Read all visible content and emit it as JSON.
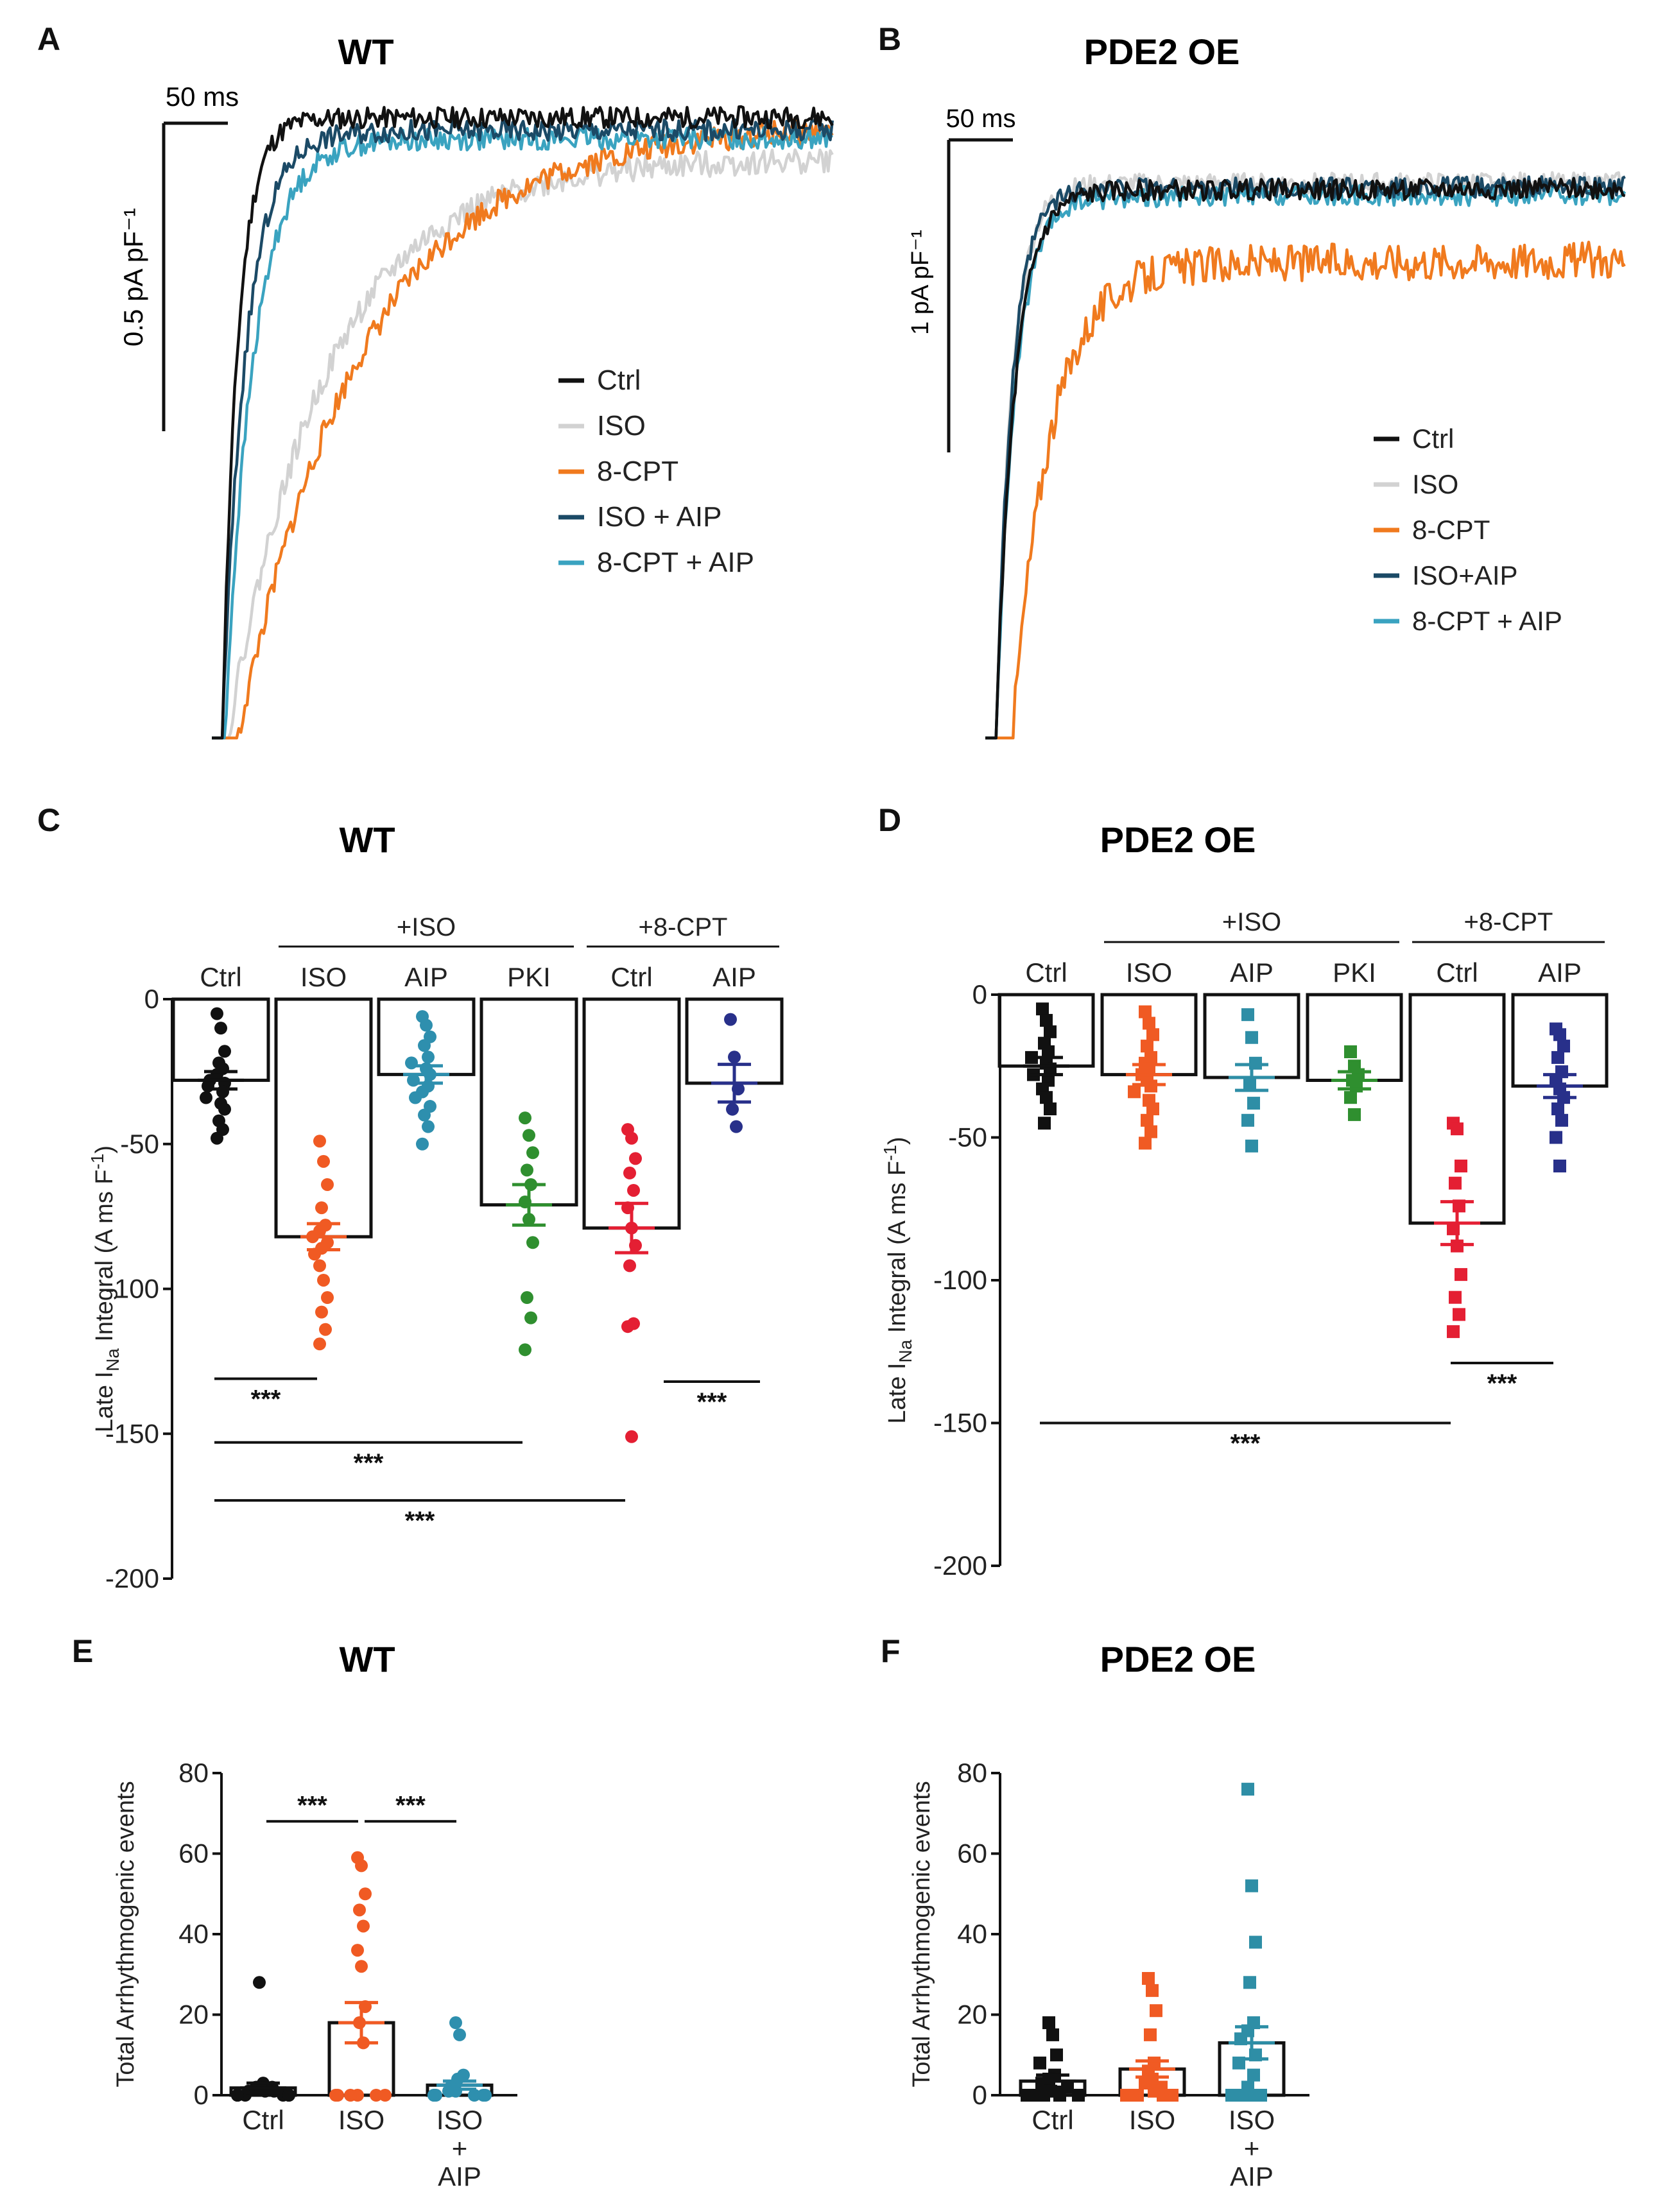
{
  "colors": {
    "black": "#111111",
    "grey": "#d2d2d2",
    "orange": "#f07a1e",
    "orange_red": "#f05a23",
    "dark_teal": "#1b4a66",
    "teal": "#3aa3c0",
    "teal_dots": "#2e8fae",
    "green": "#2f8f2f",
    "red": "#e41f33",
    "navy": "#28308a",
    "tealsq": "#2e8ea6"
  },
  "chart_data": [
    {
      "panel": "A",
      "type": "line",
      "title": "WT",
      "scale_time": "50 ms",
      "scale_current": "0.5 pA pF⁻¹",
      "x_range_ms": [
        0,
        240
      ],
      "y_range_pA_pF": [
        -1.5,
        0.0
      ],
      "legend": [
        "Ctrl",
        "ISO",
        "8-CPT",
        "ISO + AIP",
        "8-CPT + AIP"
      ],
      "series": [
        {
          "name": "Ctrl",
          "color_key": "black",
          "start": -1.5,
          "end": -0.05,
          "tau_ms": 6,
          "delay_ms": 4,
          "noise": 0.025,
          "seed": 11
        },
        {
          "name": "ISO",
          "color_key": "grey",
          "start": -1.5,
          "end": -0.15,
          "tau_ms": 38,
          "delay_ms": 6,
          "noise": 0.03,
          "seed": 22
        },
        {
          "name": "8-CPT",
          "color_key": "orange",
          "start": -1.5,
          "end": -0.07,
          "tau_ms": 48,
          "delay_ms": 10,
          "noise": 0.03,
          "seed": 33
        },
        {
          "name": "ISO + AIP",
          "color_key": "dark_teal",
          "start": -1.5,
          "end": -0.08,
          "tau_ms": 9,
          "delay_ms": 4,
          "noise": 0.025,
          "seed": 44
        },
        {
          "name": "8-CPT + AIP",
          "color_key": "teal",
          "start": -1.5,
          "end": -0.1,
          "tau_ms": 11,
          "delay_ms": 5,
          "noise": 0.025,
          "seed": 55
        }
      ]
    },
    {
      "panel": "B",
      "type": "line",
      "title": "PDE2 OE",
      "scale_time": "50 ms",
      "scale_current": "1 pA pF⁻¹",
      "x_range_ms": [
        0,
        240
      ],
      "y_range_pA_pF": [
        -2.9,
        0.0
      ],
      "legend": [
        "Ctrl",
        "ISO",
        "8-CPT",
        "ISO+AIP",
        "8-CPT + AIP"
      ],
      "series": [
        {
          "name": "Ctrl",
          "color_key": "black",
          "start": -2.9,
          "end": -0.25,
          "tau_ms": 7,
          "delay_ms": 4,
          "noise": 0.05,
          "seed": 66
        },
        {
          "name": "ISO",
          "color_key": "grey",
          "start": -2.9,
          "end": -0.22,
          "tau_ms": 6,
          "delay_ms": 4,
          "noise": 0.05,
          "seed": 77
        },
        {
          "name": "8-CPT",
          "color_key": "orange",
          "start": -2.9,
          "end": -0.6,
          "tau_ms": 14,
          "delay_ms": 10,
          "noise": 0.09,
          "seed": 88
        },
        {
          "name": "ISO+AIP",
          "color_key": "dark_teal",
          "start": -2.9,
          "end": -0.24,
          "tau_ms": 6,
          "delay_ms": 4,
          "noise": 0.05,
          "seed": 99
        },
        {
          "name": "8-CPT + AIP",
          "color_key": "teal",
          "start": -2.9,
          "end": -0.28,
          "tau_ms": 7,
          "delay_ms": 4,
          "noise": 0.05,
          "seed": 111
        }
      ]
    },
    {
      "panel": "C",
      "type": "bar",
      "title": "WT",
      "ylabel": "Late I",
      "ylabel_sub": "Na",
      "ylabel_rest": " Integral (A ms F",
      "ylabel_sup": "-1",
      "ylabel_end": ")",
      "ylim": [
        -200,
        0
      ],
      "yticks": [
        0,
        -50,
        -100,
        -150,
        -200
      ],
      "group_labels": [
        {
          "label": "+ISO",
          "from": 1,
          "to": 3
        },
        {
          "label": "+8-CPT",
          "from": 4,
          "to": 5
        }
      ],
      "categories": [
        "Ctrl",
        "ISO",
        "AIP",
        "PKI",
        "Ctrl",
        "AIP"
      ],
      "marker": "circle",
      "values": [
        -28,
        -82,
        -26,
        -71,
        -79,
        -29
      ],
      "sem": [
        3,
        4.5,
        3,
        7,
        8.5,
        6.5
      ],
      "point_color_keys": [
        "black",
        "orange_red",
        "teal_dots",
        "green",
        "red",
        "navy"
      ],
      "points": [
        [
          -5,
          -10,
          -18,
          -22,
          -24,
          -26,
          -28,
          -29,
          -30,
          -32,
          -34,
          -36,
          -38,
          -42,
          -45,
          -48
        ],
        [
          -49,
          -56,
          -64,
          -72,
          -78,
          -80,
          -82,
          -84,
          -86,
          -88,
          -92,
          -97,
          -103,
          -108,
          -114,
          -119
        ],
        [
          -6,
          -9,
          -13,
          -16,
          -20,
          -22,
          -24,
          -26,
          -28,
          -30,
          -32,
          -34,
          -37,
          -40,
          -44,
          -50
        ],
        [
          -41,
          -47,
          -53,
          -59,
          -64,
          -70,
          -76,
          -84,
          -103,
          -110,
          -121
        ],
        [
          -45,
          -48,
          -55,
          -60,
          -66,
          -72,
          -79,
          -85,
          -92,
          -112,
          -113,
          -151
        ],
        [
          -7,
          -20,
          -31,
          -38,
          -44
        ]
      ],
      "significance": [
        {
          "from": 0,
          "to": 1,
          "y": -131,
          "label": "***"
        },
        {
          "from": 5,
          "to": 5.75,
          "y": -132,
          "label": "***",
          "right": true
        },
        {
          "from": 0,
          "to": 3,
          "y": -153,
          "label": "***"
        },
        {
          "from": 0,
          "to": 4,
          "y": -173,
          "label": "***"
        }
      ]
    },
    {
      "panel": "D",
      "type": "bar",
      "title": "PDE2 OE",
      "ylabel": "Late I",
      "ylabel_sub": "Na",
      "ylabel_rest": " Integral (A ms F",
      "ylabel_sup": "-1",
      "ylabel_end": ")",
      "ylim": [
        -200,
        0
      ],
      "yticks": [
        0,
        -50,
        -100,
        -150,
        -200
      ],
      "group_labels": [
        {
          "label": "+ISO",
          "from": 1,
          "to": 3
        },
        {
          "label": "+8-CPT",
          "from": 4,
          "to": 5
        }
      ],
      "categories": [
        "Ctrl",
        "ISO",
        "AIP",
        "PKI",
        "Ctrl",
        "AIP"
      ],
      "marker": "square",
      "values": [
        -25,
        -28,
        -29,
        -30,
        -80,
        -32
      ],
      "sem": [
        3,
        3.5,
        4.5,
        3,
        7.5,
        4
      ],
      "point_color_keys": [
        "black",
        "orange_red",
        "tealsq",
        "green",
        "red",
        "navy"
      ],
      "points": [
        [
          -5,
          -9,
          -13,
          -17,
          -20,
          -22,
          -24,
          -26,
          -28,
          -30,
          -33,
          -36,
          -40,
          -45
        ],
        [
          -6,
          -10,
          -14,
          -18,
          -22,
          -24,
          -26,
          -28,
          -30,
          -32,
          -34,
          -37,
          -40,
          -44,
          -48,
          -52
        ],
        [
          -7,
          -15,
          -24,
          -31,
          -38,
          -44,
          -53
        ],
        [
          -20,
          -25,
          -28,
          -30,
          -32,
          -36,
          -42
        ],
        [
          -45,
          -47,
          -60,
          -66,
          -74,
          -82,
          -88,
          -98,
          -106,
          -112,
          -118
        ],
        [
          -12,
          -14,
          -18,
          -22,
          -27,
          -30,
          -33,
          -36,
          -40,
          -44,
          -50,
          -60
        ]
      ],
      "significance": [
        {
          "from": 4,
          "to": 5,
          "y": -129,
          "label": "***"
        },
        {
          "from": 0,
          "to": 4,
          "y": -150,
          "label": "***"
        }
      ]
    },
    {
      "panel": "E",
      "type": "bar",
      "title": "WT",
      "ylabel": "Total Arrhythmogenic events",
      "ylim": [
        0,
        80
      ],
      "yticks": [
        0,
        20,
        40,
        60,
        80
      ],
      "categories": [
        "Ctrl",
        "ISO",
        "ISO\n+\nAIP"
      ],
      "marker": "circle",
      "values": [
        1.8,
        18,
        2.5
      ],
      "sem": [
        1.2,
        5,
        1
      ],
      "point_color_keys": [
        "black",
        "orange_red",
        "teal_dots"
      ],
      "points": [
        [
          28,
          3,
          2,
          2,
          1,
          1,
          1,
          0,
          0,
          0,
          0,
          0,
          0,
          0,
          0,
          0
        ],
        [
          59,
          57,
          50,
          46,
          42,
          36,
          32,
          22,
          18,
          13,
          0,
          0,
          0,
          0,
          0,
          0
        ],
        [
          18,
          15,
          5,
          4,
          2,
          1,
          1,
          0,
          0,
          0,
          0,
          0,
          0
        ]
      ],
      "significance": [
        {
          "from": 0,
          "to": 1,
          "y": 68,
          "label": "***"
        },
        {
          "from": 1,
          "to": 2,
          "y": 68,
          "label": "***"
        }
      ]
    },
    {
      "panel": "F",
      "type": "bar",
      "title": "PDE2 OE",
      "ylabel": "Total Arrhythmogenic events",
      "ylim": [
        0,
        80
      ],
      "yticks": [
        0,
        20,
        40,
        60,
        80
      ],
      "categories": [
        "Ctrl",
        "ISO",
        "ISO\n+\nAIP"
      ],
      "marker": "square",
      "values": [
        3.5,
        6.5,
        13
      ],
      "sem": [
        1.5,
        2,
        4
      ],
      "point_color_keys": [
        "black",
        "orange_red",
        "tealsq"
      ],
      "points": [
        [
          18,
          15,
          10,
          8,
          5,
          4,
          3,
          2,
          1,
          0,
          0,
          0,
          0,
          0,
          0
        ],
        [
          29,
          26,
          21,
          15,
          8,
          6,
          4,
          3,
          2,
          1,
          0,
          0,
          0,
          0,
          0
        ],
        [
          76,
          52,
          38,
          28,
          18,
          16,
          14,
          10,
          8,
          5,
          2,
          0,
          0,
          0,
          0
        ]
      ],
      "significance": []
    }
  ]
}
